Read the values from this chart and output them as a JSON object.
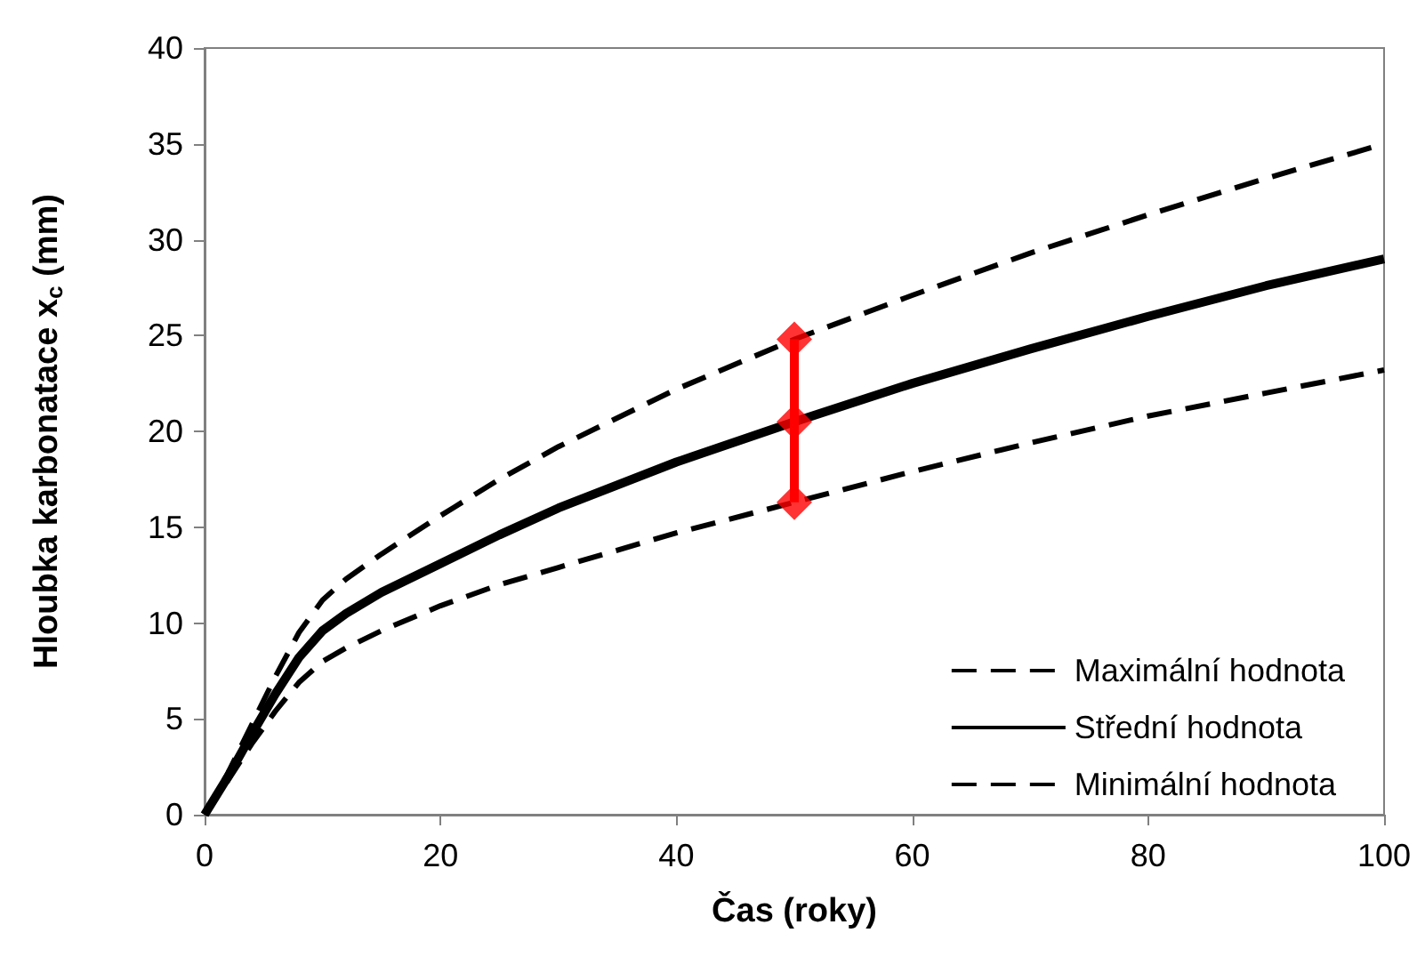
{
  "chart_data": {
    "type": "line",
    "xlabel": "Čas (roky)",
    "ylabel": "Hloubka karbonatace x$_{c}$ (mm)",
    "x": [
      0,
      2,
      4,
      6,
      8,
      10,
      12,
      15,
      20,
      25,
      30,
      40,
      50,
      60,
      70,
      80,
      90,
      100
    ],
    "series": [
      {
        "name": "Maximální hodnota",
        "color": "#000000",
        "line_style": "dashed",
        "values": [
          0,
          2.2,
          4.7,
          7.2,
          9.5,
          11.2,
          12.3,
          13.6,
          15.6,
          17.5,
          19.2,
          22.2,
          24.8,
          27.1,
          29.3,
          31.3,
          33.2,
          35.0
        ]
      },
      {
        "name": "Střední hodnota",
        "color": "#000000",
        "line_style": "solid",
        "values": [
          0,
          2,
          4.2,
          6.3,
          8.2,
          9.6,
          10.5,
          11.6,
          13.1,
          14.6,
          16.0,
          18.4,
          20.5,
          22.5,
          24.3,
          26.0,
          27.6,
          29.0
        ]
      },
      {
        "name": "Minimální hodnota",
        "color": "#000000",
        "line_style": "dashed",
        "values": [
          0,
          1.8,
          3.7,
          5.4,
          6.9,
          8.0,
          8.7,
          9.6,
          10.9,
          12.0,
          12.9,
          14.7,
          16.3,
          17.9,
          19.4,
          20.8,
          22.0,
          23.2
        ]
      },
      {
        "type": "scatter",
        "color": "#ff0000",
        "marker": "diamond",
        "values": [
          null,
          null,
          null,
          null,
          null,
          null,
          null,
          null,
          null,
          null,
          null,
          null,
          16.3,
          null,
          null,
          null,
          null,
          null
        ]
      },
      {
        "type": "scatter",
        "color": "#ff0000",
        "marker": "diamond",
        "values": [
          null,
          null,
          null,
          null,
          null,
          null,
          null,
          null,
          null,
          null,
          null,
          null,
          20.5,
          null,
          null,
          null,
          null,
          null
        ],
        "errors": [
          null,
          null,
          null,
          null,
          null,
          null,
          null,
          null,
          null,
          null,
          null,
          null,
          [
            16.3,
            24.8
          ],
          null,
          null,
          null,
          null,
          null
        ]
      },
      {
        "type": "scatter",
        "color": "#ff0000",
        "marker": "diamond",
        "values": [
          null,
          null,
          null,
          null,
          null,
          null,
          null,
          null,
          null,
          null,
          null,
          null,
          24.8,
          null,
          null,
          null,
          null,
          null
        ]
      }
    ],
    "xlim": [
      0,
      100
    ],
    "xticks": [
      0,
      20,
      40,
      60,
      80,
      100
    ],
    "ylim": [
      0,
      40
    ],
    "yticks": [
      0,
      5,
      10,
      15,
      20,
      25,
      30,
      35,
      40
    ],
    "grid": false,
    "legend": "bottom right",
    "marker": "none"
  }
}
